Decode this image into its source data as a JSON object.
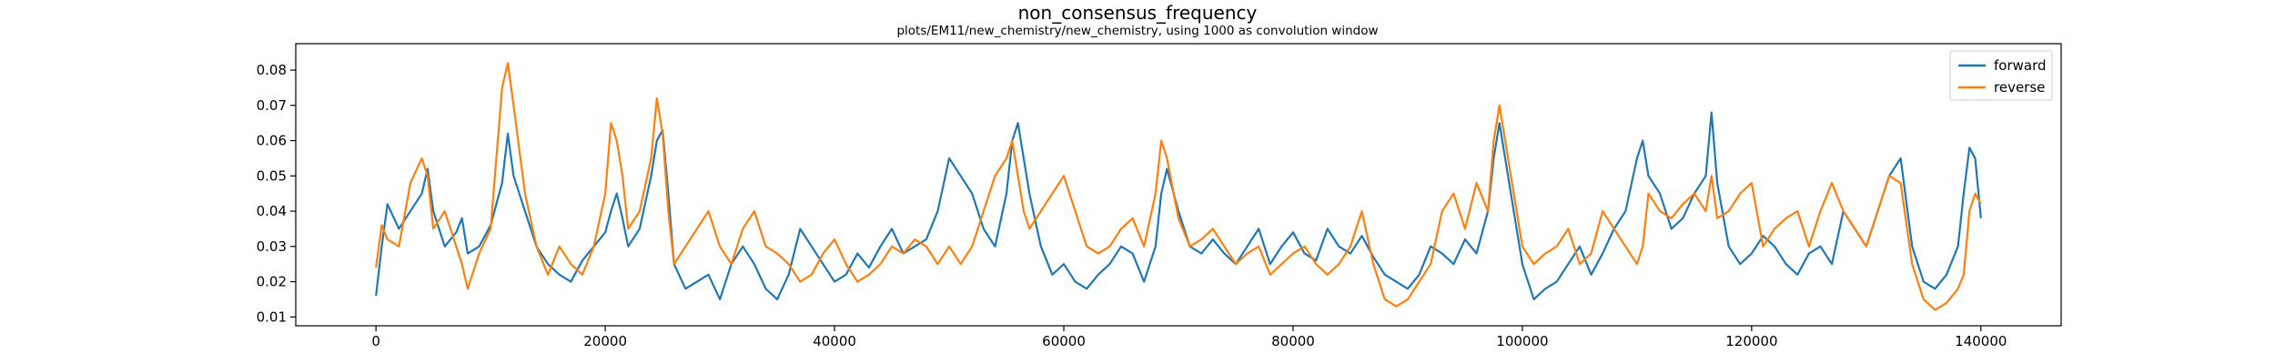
{
  "chart_data": {
    "type": "line",
    "title": "non_consensus_frequency",
    "subtitle": "plots/EM11/new_chemistry/new_chemistry, using 1000 as convolution window",
    "xlabel": "",
    "ylabel": "",
    "xlim": [
      -7000,
      147000
    ],
    "ylim": [
      0.0075,
      0.0875
    ],
    "x_ticks": [
      0,
      20000,
      40000,
      60000,
      80000,
      100000,
      120000,
      140000
    ],
    "x_tick_labels": [
      "0",
      "20000",
      "40000",
      "60000",
      "80000",
      "100000",
      "120000",
      "140000"
    ],
    "y_ticks": [
      0.01,
      0.02,
      0.03,
      0.04,
      0.05,
      0.06,
      0.07,
      0.08
    ],
    "y_tick_labels": [
      "0.01",
      "0.02",
      "0.03",
      "0.04",
      "0.05",
      "0.06",
      "0.07",
      "0.08"
    ],
    "grid": false,
    "legend_position": "top-right",
    "series": [
      {
        "name": "forward",
        "color": "#1f77b4",
        "x": [
          0,
          500,
          1000,
          2000,
          3000,
          4000,
          4500,
          5000,
          6000,
          7000,
          7500,
          8000,
          9000,
          10000,
          10500,
          11000,
          11500,
          12000,
          13000,
          14000,
          15000,
          16000,
          17000,
          18000,
          19000,
          20000,
          20500,
          21000,
          21500,
          22000,
          23000,
          24000,
          24500,
          25000,
          25500,
          26000,
          27000,
          28000,
          29000,
          30000,
          31000,
          32000,
          33000,
          34000,
          35000,
          36000,
          37000,
          38000,
          39000,
          40000,
          41000,
          42000,
          43000,
          44000,
          45000,
          46000,
          47000,
          48000,
          49000,
          50000,
          51000,
          52000,
          53000,
          54000,
          55000,
          55500,
          56000,
          56500,
          57000,
          58000,
          59000,
          60000,
          61000,
          62000,
          63000,
          64000,
          65000,
          66000,
          67000,
          68000,
          68500,
          69000,
          70000,
          71000,
          72000,
          73000,
          74000,
          75000,
          76000,
          77000,
          78000,
          79000,
          80000,
          81000,
          82000,
          83000,
          84000,
          85000,
          86000,
          87000,
          88000,
          89000,
          90000,
          91000,
          92000,
          93000,
          94000,
          95000,
          96000,
          97000,
          97500,
          98000,
          99000,
          100000,
          101000,
          102000,
          103000,
          104000,
          105000,
          106000,
          107000,
          108000,
          109000,
          110000,
          110500,
          111000,
          112000,
          113000,
          114000,
          115000,
          116000,
          116500,
          117000,
          118000,
          119000,
          120000,
          121000,
          122000,
          123000,
          124000,
          125000,
          126000,
          127000,
          128000,
          129000,
          130000,
          131000,
          132000,
          133000,
          134000,
          135000,
          136000,
          137000,
          138000,
          138500,
          139000,
          139500,
          140000
        ],
        "values": [
          0.016,
          0.03,
          0.042,
          0.035,
          0.04,
          0.045,
          0.052,
          0.04,
          0.03,
          0.034,
          0.038,
          0.028,
          0.03,
          0.036,
          0.042,
          0.048,
          0.062,
          0.05,
          0.04,
          0.03,
          0.025,
          0.022,
          0.02,
          0.026,
          0.03,
          0.034,
          0.04,
          0.045,
          0.038,
          0.03,
          0.035,
          0.05,
          0.06,
          0.063,
          0.045,
          0.025,
          0.018,
          0.02,
          0.022,
          0.015,
          0.025,
          0.03,
          0.025,
          0.018,
          0.015,
          0.022,
          0.035,
          0.03,
          0.025,
          0.02,
          0.022,
          0.028,
          0.024,
          0.03,
          0.035,
          0.028,
          0.03,
          0.032,
          0.04,
          0.055,
          0.05,
          0.045,
          0.035,
          0.03,
          0.045,
          0.06,
          0.065,
          0.055,
          0.045,
          0.03,
          0.022,
          0.025,
          0.02,
          0.018,
          0.022,
          0.025,
          0.03,
          0.028,
          0.02,
          0.03,
          0.045,
          0.052,
          0.04,
          0.03,
          0.028,
          0.032,
          0.028,
          0.025,
          0.03,
          0.035,
          0.025,
          0.03,
          0.034,
          0.028,
          0.026,
          0.035,
          0.03,
          0.028,
          0.033,
          0.027,
          0.022,
          0.02,
          0.018,
          0.022,
          0.03,
          0.028,
          0.025,
          0.032,
          0.028,
          0.04,
          0.055,
          0.065,
          0.045,
          0.025,
          0.015,
          0.018,
          0.02,
          0.025,
          0.03,
          0.022,
          0.028,
          0.035,
          0.04,
          0.055,
          0.06,
          0.05,
          0.045,
          0.035,
          0.038,
          0.045,
          0.05,
          0.068,
          0.048,
          0.03,
          0.025,
          0.028,
          0.033,
          0.03,
          0.025,
          0.022,
          0.028,
          0.03,
          0.025,
          0.04,
          0.035,
          0.03,
          0.04,
          0.05,
          0.055,
          0.03,
          0.02,
          0.018,
          0.022,
          0.03,
          0.045,
          0.058,
          0.055,
          0.038
        ]
      },
      {
        "name": "reverse",
        "color": "#ff7f0e",
        "x": [
          0,
          500,
          1000,
          2000,
          3000,
          4000,
          4500,
          5000,
          6000,
          7000,
          7500,
          8000,
          9000,
          10000,
          10500,
          11000,
          11500,
          12000,
          13000,
          14000,
          15000,
          16000,
          17000,
          18000,
          19000,
          20000,
          20500,
          21000,
          21500,
          22000,
          23000,
          24000,
          24500,
          25000,
          25500,
          26000,
          27000,
          28000,
          29000,
          30000,
          31000,
          32000,
          33000,
          34000,
          35000,
          36000,
          37000,
          38000,
          39000,
          40000,
          41000,
          42000,
          43000,
          44000,
          45000,
          46000,
          47000,
          48000,
          49000,
          50000,
          51000,
          52000,
          53000,
          54000,
          55000,
          55500,
          56000,
          56500,
          57000,
          58000,
          59000,
          60000,
          61000,
          62000,
          63000,
          64000,
          65000,
          66000,
          67000,
          68000,
          68500,
          69000,
          70000,
          71000,
          72000,
          73000,
          74000,
          75000,
          76000,
          77000,
          78000,
          79000,
          80000,
          81000,
          82000,
          83000,
          84000,
          85000,
          86000,
          87000,
          88000,
          89000,
          90000,
          91000,
          92000,
          93000,
          94000,
          95000,
          96000,
          97000,
          97500,
          98000,
          99000,
          100000,
          101000,
          102000,
          103000,
          104000,
          105000,
          106000,
          107000,
          108000,
          109000,
          110000,
          110500,
          111000,
          112000,
          113000,
          114000,
          115000,
          116000,
          116500,
          117000,
          118000,
          119000,
          120000,
          121000,
          122000,
          123000,
          124000,
          125000,
          126000,
          127000,
          128000,
          129000,
          130000,
          131000,
          132000,
          133000,
          134000,
          135000,
          136000,
          137000,
          138000,
          138500,
          139000,
          139500,
          140000
        ],
        "values": [
          0.024,
          0.036,
          0.032,
          0.03,
          0.048,
          0.055,
          0.05,
          0.035,
          0.04,
          0.03,
          0.025,
          0.018,
          0.028,
          0.035,
          0.055,
          0.075,
          0.082,
          0.07,
          0.045,
          0.03,
          0.022,
          0.03,
          0.025,
          0.022,
          0.03,
          0.045,
          0.065,
          0.06,
          0.05,
          0.035,
          0.04,
          0.055,
          0.072,
          0.062,
          0.04,
          0.025,
          0.03,
          0.035,
          0.04,
          0.03,
          0.025,
          0.035,
          0.04,
          0.03,
          0.028,
          0.025,
          0.02,
          0.022,
          0.028,
          0.032,
          0.025,
          0.02,
          0.022,
          0.025,
          0.03,
          0.028,
          0.032,
          0.03,
          0.025,
          0.03,
          0.025,
          0.03,
          0.04,
          0.05,
          0.055,
          0.06,
          0.05,
          0.04,
          0.035,
          0.04,
          0.045,
          0.05,
          0.04,
          0.03,
          0.028,
          0.03,
          0.035,
          0.038,
          0.03,
          0.045,
          0.06,
          0.055,
          0.038,
          0.03,
          0.032,
          0.035,
          0.03,
          0.025,
          0.028,
          0.03,
          0.022,
          0.025,
          0.028,
          0.03,
          0.025,
          0.022,
          0.025,
          0.03,
          0.04,
          0.025,
          0.015,
          0.013,
          0.015,
          0.02,
          0.025,
          0.04,
          0.045,
          0.035,
          0.048,
          0.04,
          0.06,
          0.07,
          0.05,
          0.03,
          0.025,
          0.028,
          0.03,
          0.035,
          0.025,
          0.028,
          0.04,
          0.035,
          0.03,
          0.025,
          0.03,
          0.045,
          0.04,
          0.038,
          0.042,
          0.045,
          0.04,
          0.05,
          0.038,
          0.04,
          0.045,
          0.048,
          0.03,
          0.035,
          0.038,
          0.04,
          0.03,
          0.04,
          0.048,
          0.04,
          0.035,
          0.03,
          0.04,
          0.05,
          0.048,
          0.025,
          0.015,
          0.012,
          0.014,
          0.018,
          0.022,
          0.04,
          0.045,
          0.042
        ]
      }
    ]
  }
}
